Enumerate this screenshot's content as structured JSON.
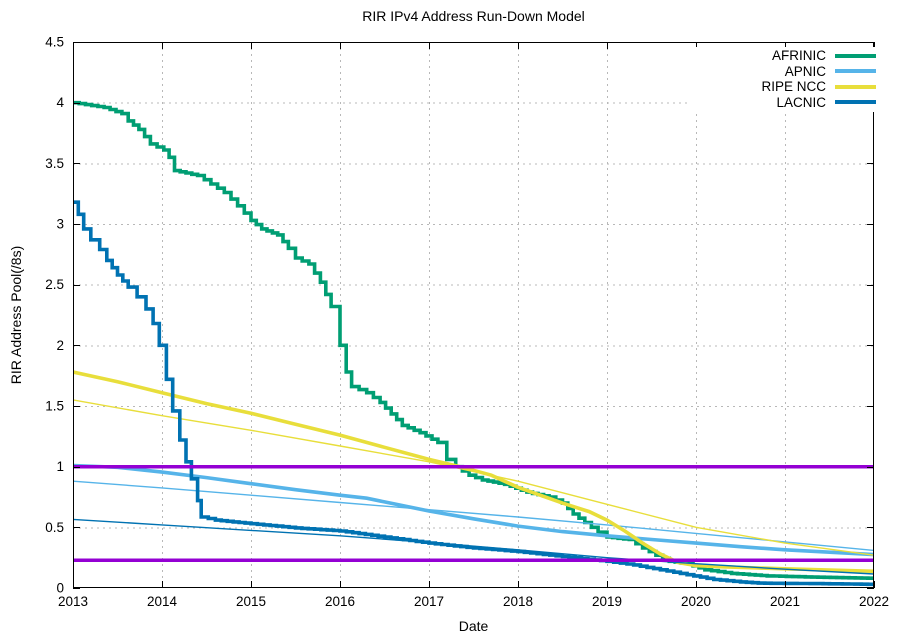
{
  "chart_data": {
    "type": "line",
    "title": "RIR IPv4 Address Run-Down Model",
    "xlabel": "Date",
    "ylabel": "RIR Address Pool(/8s)",
    "xlim": [
      2013,
      2022
    ],
    "ylim": [
      0,
      4.5
    ],
    "xticks": [
      2013,
      2014,
      2015,
      2016,
      2017,
      2018,
      2019,
      2020,
      2021,
      2022
    ],
    "yticks": [
      0,
      0.5,
      1,
      1.5,
      2,
      2.5,
      3,
      3.5,
      4,
      4.5
    ],
    "grid": "dashed",
    "grid_color": "#b8b8b8",
    "border_color": "#000000",
    "background": "#ffffff",
    "legend_position": "top-right-inside",
    "threshold_color": "#9400d3",
    "thresholds": [
      {
        "value": 1.0
      },
      {
        "value": 0.23
      }
    ],
    "series": [
      {
        "name": "AFRINIC",
        "legend": true,
        "color": "#009e73",
        "width": 3.6,
        "mode": "step",
        "points": [
          [
            2013,
            4.0
          ],
          [
            2013.35,
            3.96
          ],
          [
            2013.55,
            3.91
          ],
          [
            2013.62,
            3.85
          ],
          [
            2013.74,
            3.78
          ],
          [
            2013.87,
            3.66
          ],
          [
            2014.02,
            3.61
          ],
          [
            2014.08,
            3.55
          ],
          [
            2014.14,
            3.44
          ],
          [
            2014.4,
            3.4
          ],
          [
            2014.55,
            3.33
          ],
          [
            2014.7,
            3.26
          ],
          [
            2014.85,
            3.15
          ],
          [
            2015.0,
            3.03
          ],
          [
            2015.12,
            2.96
          ],
          [
            2015.3,
            2.91
          ],
          [
            2015.42,
            2.8
          ],
          [
            2015.5,
            2.72
          ],
          [
            2015.65,
            2.67
          ],
          [
            2015.78,
            2.52
          ],
          [
            2015.9,
            2.32
          ],
          [
            2016.0,
            2.0
          ],
          [
            2016.07,
            1.78
          ],
          [
            2016.13,
            1.66
          ],
          [
            2016.3,
            1.61
          ],
          [
            2016.45,
            1.53
          ],
          [
            2016.7,
            1.34
          ],
          [
            2016.9,
            1.28
          ],
          [
            2017.1,
            1.2
          ],
          [
            2017.2,
            1.06
          ],
          [
            2017.3,
            1.0
          ],
          [
            2017.45,
            0.93
          ],
          [
            2017.6,
            0.89
          ],
          [
            2017.85,
            0.855
          ],
          [
            2018.1,
            0.79
          ],
          [
            2018.35,
            0.75
          ],
          [
            2018.5,
            0.7
          ],
          [
            2018.62,
            0.61
          ],
          [
            2018.75,
            0.54
          ],
          [
            2018.9,
            0.46
          ],
          [
            2019.0,
            0.42
          ],
          [
            2019.25,
            0.4
          ],
          [
            2019.4,
            0.33
          ],
          [
            2019.55,
            0.27
          ],
          [
            2019.7,
            0.22
          ],
          [
            2019.9,
            0.2
          ],
          [
            2020.1,
            0.15
          ],
          [
            2020.4,
            0.12
          ],
          [
            2020.8,
            0.1
          ],
          [
            2021.3,
            0.09
          ],
          [
            2022,
            0.08
          ]
        ]
      },
      {
        "name": "APNIC model",
        "legend": false,
        "color": "#56b4e9",
        "width": 1.4,
        "mode": "linear",
        "points": [
          [
            2013,
            0.88
          ],
          [
            2014,
            0.825
          ],
          [
            2015,
            0.765
          ],
          [
            2016,
            0.705
          ],
          [
            2017,
            0.645
          ],
          [
            2018,
            0.585
          ],
          [
            2019,
            0.52
          ],
          [
            2020,
            0.45
          ],
          [
            2021,
            0.38
          ],
          [
            2022,
            0.31
          ]
        ]
      },
      {
        "name": "APNIC",
        "legend": true,
        "color": "#56b4e9",
        "width": 3.6,
        "mode": "linear",
        "points": [
          [
            2013,
            1.01
          ],
          [
            2013.5,
            0.995
          ],
          [
            2014,
            0.955
          ],
          [
            2014.5,
            0.91
          ],
          [
            2015,
            0.86
          ],
          [
            2015.5,
            0.81
          ],
          [
            2016,
            0.765
          ],
          [
            2016.3,
            0.74
          ],
          [
            2016.5,
            0.71
          ],
          [
            2017,
            0.635
          ],
          [
            2017.5,
            0.57
          ],
          [
            2018,
            0.51
          ],
          [
            2018.5,
            0.465
          ],
          [
            2019,
            0.43
          ],
          [
            2019.5,
            0.4
          ],
          [
            2020,
            0.37
          ],
          [
            2020.5,
            0.34
          ],
          [
            2021,
            0.315
          ],
          [
            2021.5,
            0.295
          ],
          [
            2022,
            0.275
          ]
        ]
      },
      {
        "name": "RIPE NCC model",
        "legend": false,
        "color": "#e8de3b",
        "width": 1.4,
        "mode": "linear",
        "points": [
          [
            2013,
            1.55
          ],
          [
            2014,
            1.42
          ],
          [
            2015,
            1.3
          ],
          [
            2016,
            1.17
          ],
          [
            2017,
            1.04
          ],
          [
            2018,
            0.88
          ],
          [
            2019,
            0.69
          ],
          [
            2020,
            0.5
          ],
          [
            2021,
            0.37
          ],
          [
            2022,
            0.27
          ]
        ]
      },
      {
        "name": "RIPE NCC",
        "legend": true,
        "color": "#e8de3b",
        "width": 3.6,
        "mode": "linear",
        "points": [
          [
            2013,
            1.78
          ],
          [
            2013.5,
            1.7
          ],
          [
            2014,
            1.61
          ],
          [
            2014.5,
            1.52
          ],
          [
            2015,
            1.44
          ],
          [
            2015.5,
            1.35
          ],
          [
            2016,
            1.26
          ],
          [
            2016.5,
            1.16
          ],
          [
            2017,
            1.06
          ],
          [
            2017.35,
            1.0
          ],
          [
            2017.7,
            0.93
          ],
          [
            2018,
            0.83
          ],
          [
            2018.5,
            0.7
          ],
          [
            2018.8,
            0.63
          ],
          [
            2019,
            0.56
          ],
          [
            2019.2,
            0.47
          ],
          [
            2019.4,
            0.37
          ],
          [
            2019.6,
            0.28
          ],
          [
            2019.8,
            0.21
          ],
          [
            2020,
            0.185
          ],
          [
            2020.3,
            0.175
          ],
          [
            2020.7,
            0.165
          ],
          [
            2021,
            0.158
          ],
          [
            2021.5,
            0.148
          ],
          [
            2022,
            0.138
          ]
        ]
      },
      {
        "name": "LACNIC model",
        "legend": false,
        "color": "#0072b2",
        "width": 1.4,
        "mode": "linear",
        "points": [
          [
            2013,
            0.565
          ],
          [
            2014,
            0.52
          ],
          [
            2015,
            0.475
          ],
          [
            2016,
            0.43
          ],
          [
            2017,
            0.375
          ],
          [
            2018,
            0.315
          ],
          [
            2019,
            0.25
          ],
          [
            2020,
            0.2
          ],
          [
            2021,
            0.155
          ],
          [
            2022,
            0.115
          ]
        ]
      },
      {
        "name": "LACNIC",
        "legend": true,
        "color": "#0072b2",
        "width": 3.6,
        "mode": "step",
        "points": [
          [
            2013,
            3.18
          ],
          [
            2013.06,
            3.08
          ],
          [
            2013.12,
            2.96
          ],
          [
            2013.2,
            2.87
          ],
          [
            2013.3,
            2.79
          ],
          [
            2013.38,
            2.7
          ],
          [
            2013.5,
            2.58
          ],
          [
            2013.62,
            2.48
          ],
          [
            2013.72,
            2.4
          ],
          [
            2013.82,
            2.3
          ],
          [
            2013.9,
            2.18
          ],
          [
            2013.97,
            2.0
          ],
          [
            2014.05,
            1.72
          ],
          [
            2014.12,
            1.46
          ],
          [
            2014.2,
            1.22
          ],
          [
            2014.27,
            1.04
          ],
          [
            2014.33,
            0.9
          ],
          [
            2014.4,
            0.72
          ],
          [
            2014.44,
            0.585
          ],
          [
            2014.6,
            0.56
          ],
          [
            2015,
            0.53
          ],
          [
            2015.5,
            0.495
          ],
          [
            2016,
            0.47
          ],
          [
            2016.5,
            0.42
          ],
          [
            2017,
            0.37
          ],
          [
            2017.5,
            0.33
          ],
          [
            2018,
            0.3
          ],
          [
            2018.5,
            0.26
          ],
          [
            2019,
            0.22
          ],
          [
            2019.3,
            0.19
          ],
          [
            2019.6,
            0.15
          ],
          [
            2019.9,
            0.11
          ],
          [
            2020.2,
            0.07
          ],
          [
            2020.5,
            0.05
          ],
          [
            2020.7,
            0.04
          ],
          [
            2021.5,
            0.035
          ],
          [
            2022,
            0.03
          ]
        ]
      }
    ]
  }
}
